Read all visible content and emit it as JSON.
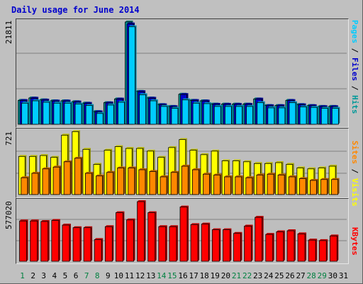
{
  "chart_data": {
    "type": "bar",
    "title": "Daily usage for June 2014",
    "categories": [
      "1",
      "2",
      "3",
      "4",
      "5",
      "6",
      "7",
      "8",
      "9",
      "10",
      "11",
      "12",
      "13",
      "14",
      "15",
      "16",
      "17",
      "18",
      "19",
      "20",
      "21",
      "22",
      "23",
      "24",
      "25",
      "26",
      "27",
      "28",
      "29",
      "30",
      "31"
    ],
    "weekend_days": [
      "1",
      "7",
      "8",
      "14",
      "15",
      "21",
      "22",
      "28",
      "29"
    ],
    "colors": {
      "hits": "#009999",
      "files": "#0000cc",
      "pages": "#00ccff",
      "visits": "#ffff00",
      "sites": "#ff8800",
      "kbytes": "#ff0000",
      "weekday": "#000000",
      "weekend": "#008040",
      "title": "#0000cc"
    },
    "panels": [
      {
        "id": "hits-files-pages",
        "max_label": "21811",
        "ylim": [
          0,
          21811
        ],
        "legend": [
          {
            "text": "Pages",
            "color": "#00ccff"
          },
          {
            "text": " / ",
            "color": "#000000"
          },
          {
            "text": "Files",
            "color": "#0000cc"
          },
          {
            "text": " / ",
            "color": "#000000"
          },
          {
            "text": "Hits",
            "color": "#009999"
          }
        ],
        "series": [
          {
            "name": "Hits",
            "color": "#009999",
            "values": [
              5100,
              5600,
              5200,
              5000,
              5000,
              4800,
              4500,
              2700,
              4600,
              5400,
              21811,
              7000,
              5600,
              4200,
              3800,
              6400,
              5100,
              5000,
              4300,
              4300,
              4300,
              4300,
              5400,
              4000,
              4000,
              5100,
              4200,
              4000,
              3800,
              3800
            ]
          },
          {
            "name": "Files",
            "color": "#0000cc",
            "values": [
              5050,
              5550,
              5150,
              4950,
              4950,
              4750,
              4450,
              2650,
              4550,
              5350,
              21400,
              6950,
              5550,
              4150,
              3750,
              6350,
              5050,
              4950,
              4250,
              4250,
              4250,
              4250,
              5350,
              3950,
              3950,
              5050,
              4150,
              3950,
              3750,
              3750
            ]
          },
          {
            "name": "Pages",
            "color": "#00ccff",
            "values": [
              4500,
              5000,
              4700,
              4500,
              4500,
              4300,
              4000,
              2300,
              4100,
              4700,
              20800,
              6300,
              5000,
              3800,
              3400,
              5200,
              4500,
              4400,
              3800,
              3800,
              3800,
              3800,
              4600,
              3500,
              3500,
              4600,
              3700,
              3600,
              3400,
              3400
            ]
          }
        ]
      },
      {
        "id": "visits-sites",
        "max_label": "721",
        "ylim": [
          0,
          721
        ],
        "legend": [
          {
            "text": "Sites",
            "color": "#ff8800"
          },
          {
            "text": " / ",
            "color": "#000000"
          },
          {
            "text": "Visits",
            "color": "#ffff00"
          }
        ],
        "series": [
          {
            "name": "Visits",
            "color": "#ffff00",
            "values": [
              430,
              430,
              440,
              420,
              670,
              710,
              510,
              340,
              500,
              540,
              520,
              520,
              490,
              420,
              530,
              620,
              500,
              450,
              490,
              380,
              380,
              370,
              350,
              350,
              360,
              340,
              300,
              290,
              300,
              320
            ]
          },
          {
            "name": "Sites",
            "color": "#ff8800",
            "values": [
              190,
              240,
              290,
              310,
              370,
              410,
              240,
              210,
              250,
              300,
              300,
              280,
              260,
              200,
              250,
              320,
              280,
              230,
              220,
              200,
              200,
              190,
              220,
              230,
              220,
              200,
              180,
              160,
              170,
              170
            ]
          }
        ]
      },
      {
        "id": "kbytes",
        "max_label": "577020",
        "ylim": [
          0,
          577020
        ],
        "legend": [
          {
            "text": "KBytes",
            "color": "#ff0000"
          }
        ],
        "series": [
          {
            "name": "KBytes",
            "color": "#ff0000",
            "values": [
              390000,
              390000,
              385000,
              395000,
              350000,
              325000,
              325000,
              210000,
              335000,
              470000,
              400000,
              577020,
              470000,
              335000,
              335000,
              525000,
              355000,
              360000,
              305000,
              305000,
              270000,
              340000,
              425000,
              260000,
              285000,
              295000,
              265000,
              205000,
              200000,
              245000
            ]
          }
        ]
      }
    ]
  }
}
